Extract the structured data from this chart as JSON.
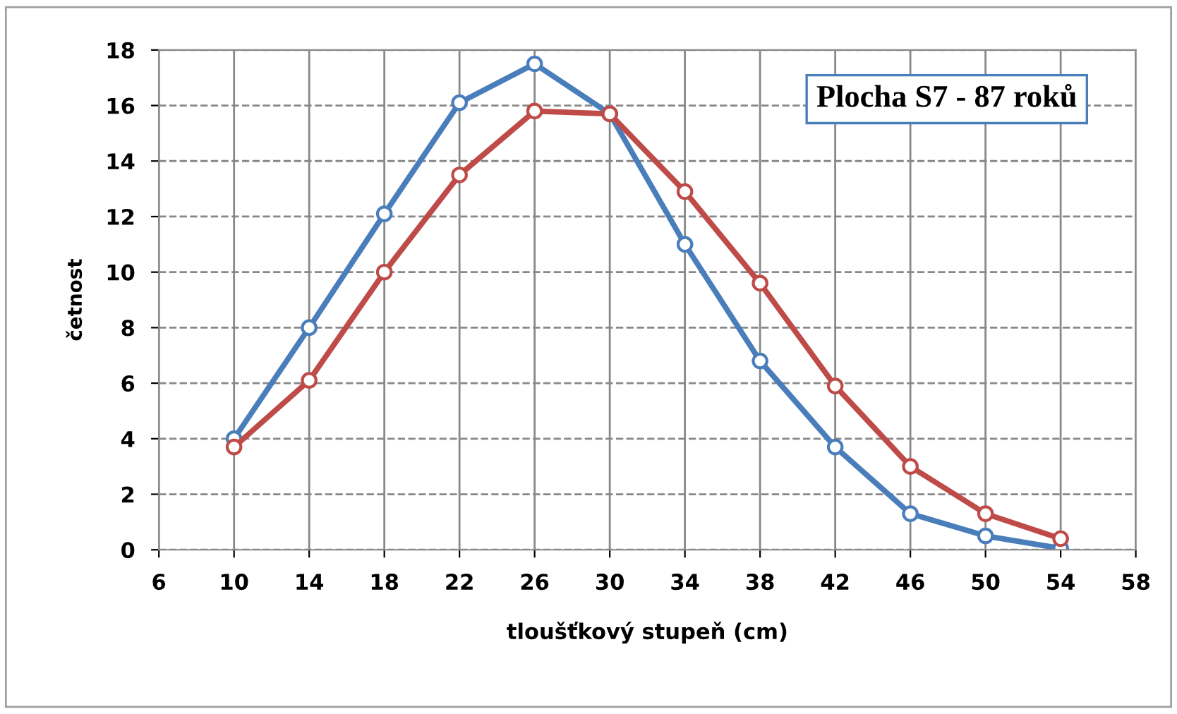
{
  "chart_data": {
    "type": "line",
    "title": "Plocha S7 - 87 roků",
    "xlabel": "tloušťkový stupeň (cm)",
    "ylabel": "četnost",
    "x": [
      10,
      14,
      18,
      22,
      26,
      30,
      34,
      38,
      42,
      46,
      50,
      54
    ],
    "series": [
      {
        "color": "#4a7ebb",
        "values": [
          4.0,
          8.0,
          12.1,
          16.1,
          17.5,
          15.7,
          11.0,
          6.8,
          3.7,
          1.3,
          0.5,
          0.05
        ]
      },
      {
        "color": "#be4b48",
        "values": [
          3.7,
          6.1,
          10.0,
          13.5,
          15.8,
          15.7,
          12.9,
          9.6,
          5.9,
          3.0,
          1.3,
          0.4
        ]
      }
    ],
    "xlim": [
      6,
      58
    ],
    "xticks": [
      6,
      10,
      14,
      18,
      22,
      26,
      30,
      34,
      38,
      42,
      46,
      50,
      54,
      58
    ],
    "ylim": [
      0,
      18
    ],
    "yticks": [
      0,
      2,
      4,
      6,
      8,
      10,
      12,
      14,
      16,
      18
    ],
    "grid": true,
    "marker": "circle",
    "line_style": "solid",
    "legend": false
  }
}
